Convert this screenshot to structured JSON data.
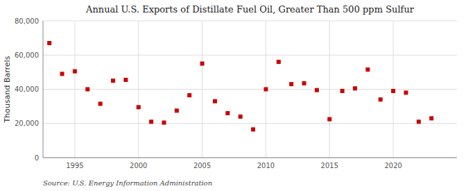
{
  "chart_data": {
    "type": "scatter",
    "title": "Annual U.S. Exports of Distillate Fuel Oil, Greater Than 500 ppm Sulfur",
    "ylabel": "Thousand Barrels",
    "annotations": [
      "Source: U.S. Energy Information Administration"
    ],
    "x": [
      1993,
      1994,
      1995,
      1996,
      1997,
      1998,
      1999,
      2000,
      2001,
      2002,
      2003,
      2004,
      2005,
      2006,
      2007,
      2008,
      2009,
      2010,
      2011,
      2012,
      2013,
      2014,
      2015,
      2016,
      2017,
      2018,
      2019,
      2020,
      2021,
      2022,
      2023
    ],
    "values": [
      67000,
      49000,
      50500,
      40000,
      31500,
      45000,
      45500,
      29500,
      21000,
      20500,
      27500,
      36500,
      55000,
      33000,
      26000,
      24000,
      16500,
      40000,
      56000,
      43000,
      43500,
      39500,
      22500,
      39000,
      40500,
      51500,
      34000,
      39000,
      38000,
      21000,
      23000
    ],
    "color": "#cc0000",
    "marker": "square",
    "grid": true,
    "xlim": [
      1992.5,
      2025
    ],
    "ylim": [
      0,
      80000
    ],
    "xticks": [
      1995,
      2000,
      2005,
      2010,
      2015,
      2020
    ],
    "yticks": [
      0,
      {
        "value": 20000,
        "label": "20,000"
      },
      {
        "value": 40000,
        "label": "40,000"
      },
      {
        "value": 60000,
        "label": "60,000"
      },
      {
        "value": 80000,
        "label": "80,000"
      }
    ]
  }
}
